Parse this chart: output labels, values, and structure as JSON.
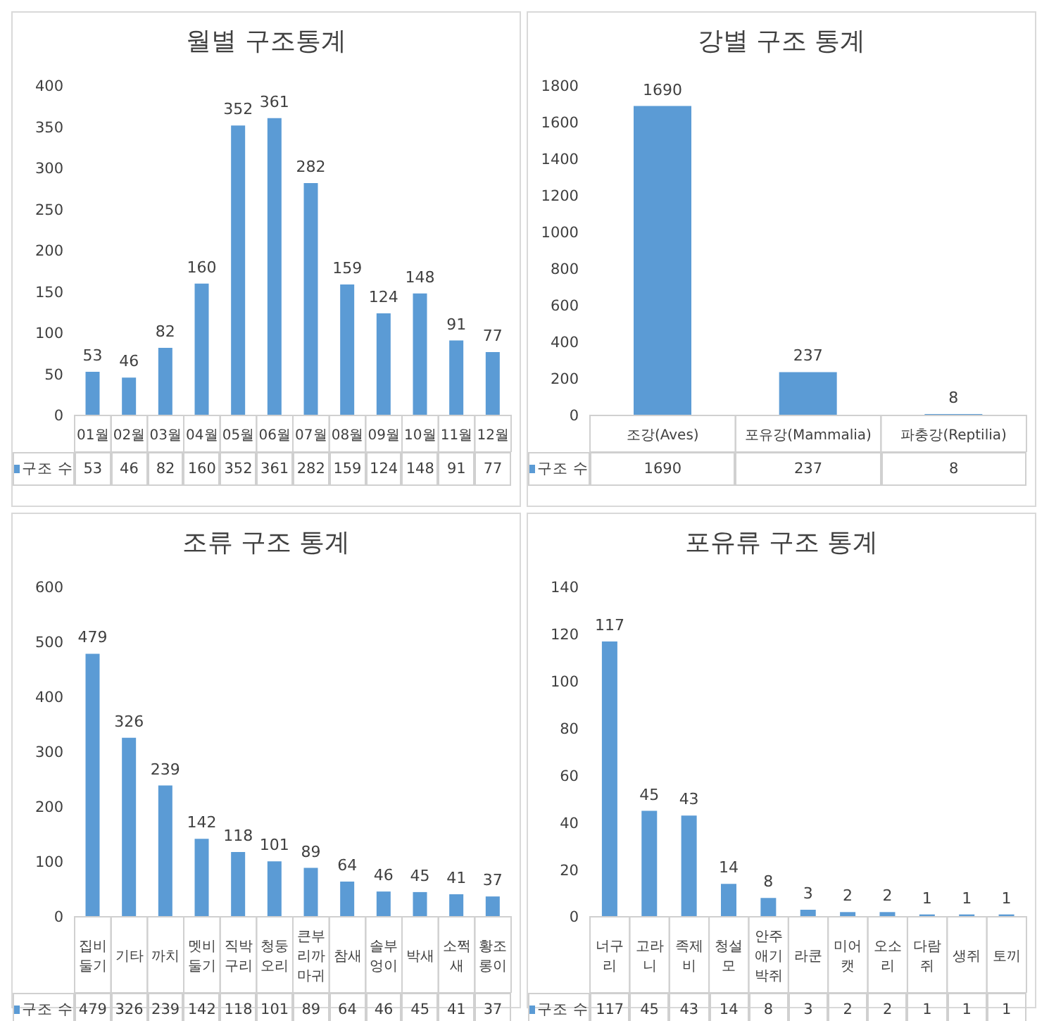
{
  "chart_data": [
    {
      "type": "bar",
      "title": "월별 구조통계",
      "categories": [
        "01월",
        "02월",
        "03월",
        "04월",
        "05월",
        "06월",
        "07월",
        "08월",
        "09월",
        "10월",
        "11월",
        "12월"
      ],
      "series": [
        {
          "name": "구조 수",
          "color": "#5b9bd5",
          "values": [
            53,
            46,
            82,
            160,
            352,
            361,
            282,
            159,
            124,
            148,
            91,
            77
          ],
          "value_labels": [
            "53",
            "46",
            "82",
            "160",
            "352",
            "361",
            "282",
            "159",
            "124",
            "148",
            "91",
            "77"
          ]
        }
      ],
      "ylim": [
        0,
        400
      ],
      "yticks": [
        0,
        50,
        100,
        150,
        200,
        250,
        300,
        350,
        400
      ],
      "data_labels": true,
      "legend": "bottom"
    },
    {
      "type": "bar",
      "title": "강별 구조 통계",
      "categories": [
        "조강(Aves)",
        "포유강(Mammalia)",
        "파충강(Reptilia)"
      ],
      "series": [
        {
          "name": "구조 수",
          "color": "#5b9bd5",
          "values": [
            1690,
            237,
            8
          ],
          "value_labels": [
            "1690",
            "237",
            "8"
          ]
        }
      ],
      "ylim": [
        0,
        1800
      ],
      "yticks": [
        0,
        200,
        400,
        600,
        800,
        1000,
        1200,
        1400,
        1600,
        1800
      ],
      "data_labels": true,
      "legend": "bottom"
    },
    {
      "type": "bar",
      "title": "조류 구조 통계",
      "categories": [
        "집비둘기",
        "기타",
        "까치",
        "멧비둘기",
        "직박구리",
        "청둥오리",
        "큰부리까마귀",
        "참새",
        "솔부엉이",
        "박새",
        "소쩍새",
        "황조롱이"
      ],
      "series": [
        {
          "name": "구조 수",
          "color": "#5b9bd5",
          "values": [
            479,
            326,
            239,
            142,
            118,
            101,
            89,
            64,
            46,
            45,
            41,
            37
          ],
          "value_labels": [
            "479",
            "326",
            "239",
            "142",
            "118",
            "101",
            "89",
            "64",
            "46",
            "45",
            "41",
            "37"
          ]
        }
      ],
      "ylim": [
        0,
        600
      ],
      "yticks": [
        0,
        100,
        200,
        300,
        400,
        500,
        600
      ],
      "data_labels": true,
      "legend": "bottom"
    },
    {
      "type": "bar",
      "title": "포유류 구조 통계",
      "categories": [
        "너구리",
        "고라니",
        "족제비",
        "청설모",
        "안주애기박쥐",
        "라쿤",
        "미어캣",
        "오소리",
        "다람쥐",
        "생쥐",
        "토끼"
      ],
      "series": [
        {
          "name": "구조 수",
          "color": "#5b9bd5",
          "values": [
            117,
            45,
            43,
            14,
            8,
            3,
            2,
            2,
            1,
            1,
            1
          ],
          "value_labels": [
            "117",
            "45",
            "43",
            "14",
            "8",
            "3",
            "2",
            "2",
            "1",
            "1",
            "1"
          ]
        }
      ],
      "ylim": [
        0,
        140
      ],
      "yticks": [
        0,
        20,
        40,
        60,
        80,
        100,
        120,
        140
      ],
      "data_labels": true,
      "legend": "bottom"
    }
  ]
}
